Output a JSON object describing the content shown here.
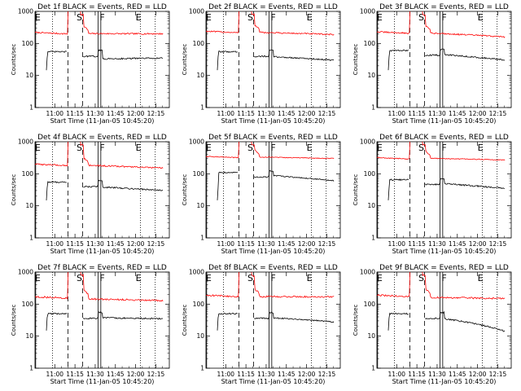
{
  "chart_data": [
    {
      "type": "line",
      "title": "Det 1f BLACK = Events, RED = LLD",
      "xlabel": "Start Time (11-Jan-05 10:45:20)",
      "ylabel": "Counts/sec",
      "yscale": "log",
      "ylim": [
        1,
        1000
      ],
      "x_ticks": [
        "11:00",
        "11:15",
        "11:30",
        "11:45",
        "12:00",
        "12:15"
      ],
      "y_ticks": [
        "1",
        "10",
        "100",
        "1000"
      ],
      "markers": [
        "E",
        "S",
        "F",
        "E"
      ],
      "series": [
        {
          "color": "#ff0000",
          "base": 220,
          "jitter": 0.05,
          "dip": 0.92,
          "end": 200,
          "peak": 1000
        },
        {
          "color": "#000000",
          "base": 55,
          "jitter": 0.05,
          "dip": 0.6,
          "end": 35
        }
      ]
    },
    {
      "type": "line",
      "title": "Det 2f BLACK = Events, RED = LLD",
      "xlabel": "Start Time (11-Jan-05 10:45:20)",
      "ylabel": "Counts/sec",
      "yscale": "log",
      "ylim": [
        1,
        1000
      ],
      "x_ticks": [
        "11:00",
        "11:15",
        "11:30",
        "11:45",
        "12:00",
        "12:15"
      ],
      "y_ticks": [
        "1",
        "10",
        "100",
        "1000"
      ],
      "markers": [
        "E",
        "S",
        "F",
        "E"
      ],
      "series": [
        {
          "color": "#ff0000",
          "base": 240,
          "jitter": 0.05,
          "dip": 0.92,
          "end": 190,
          "peak": 1000
        },
        {
          "color": "#000000",
          "base": 55,
          "jitter": 0.05,
          "dip": 0.7,
          "end": 30
        }
      ]
    },
    {
      "type": "line",
      "title": "Det 3f BLACK = Events, RED = LLD",
      "xlabel": "Start Time (11-Jan-05 10:45:20)",
      "ylabel": "Counts/sec",
      "yscale": "log",
      "ylim": [
        1,
        1000
      ],
      "x_ticks": [
        "11:00",
        "11:15",
        "11:30",
        "11:45",
        "12:00",
        "12:15"
      ],
      "y_ticks": [
        "1",
        "10",
        "100",
        "1000"
      ],
      "markers": [
        "E",
        "S",
        "F",
        "E"
      ],
      "series": [
        {
          "color": "#ff0000",
          "base": 230,
          "jitter": 0.05,
          "dip": 0.92,
          "end": 160,
          "peak": 1000
        },
        {
          "color": "#000000",
          "base": 60,
          "jitter": 0.05,
          "dip": 0.75,
          "end": 30
        }
      ]
    },
    {
      "type": "line",
      "title": "Det 4f BLACK = Events, RED = LLD",
      "xlabel": "Start Time (11-Jan-05 10:45:20)",
      "ylabel": "Counts/sec",
      "yscale": "log",
      "ylim": [
        1,
        1000
      ],
      "x_ticks": [
        "11:00",
        "11:15",
        "11:30",
        "11:45",
        "12:00",
        "12:15"
      ],
      "y_ticks": [
        "1",
        "10",
        "100",
        "1000"
      ],
      "markers": [
        "E",
        "S",
        "F",
        "E"
      ],
      "series": [
        {
          "color": "#ff0000",
          "base": 200,
          "jitter": 0.05,
          "dip": 0.92,
          "end": 150,
          "peak": 1000
        },
        {
          "color": "#000000",
          "base": 55,
          "jitter": 0.05,
          "dip": 0.7,
          "end": 30
        }
      ]
    },
    {
      "type": "line",
      "title": "Det 5f BLACK = Events, RED = LLD",
      "xlabel": "Start Time (11-Jan-05 10:45:20)",
      "ylabel": "Counts/sec",
      "yscale": "log",
      "ylim": [
        1,
        1000
      ],
      "x_ticks": [
        "11:00",
        "11:15",
        "11:30",
        "11:45",
        "12:00",
        "12:15"
      ],
      "y_ticks": [
        "1",
        "10",
        "100",
        "1000"
      ],
      "markers": [
        "E",
        "S",
        "F",
        "E"
      ],
      "series": [
        {
          "color": "#ff0000",
          "base": 350,
          "jitter": 0.03,
          "dip": 0.95,
          "end": 300,
          "peak": 1000
        },
        {
          "color": "#000000",
          "base": 110,
          "jitter": 0.04,
          "dip": 0.8,
          "end": 60
        }
      ]
    },
    {
      "type": "line",
      "title": "Det 6f BLACK = Events, RED = LLD",
      "xlabel": "Start Time (11-Jan-05 10:45:20)",
      "ylabel": "Counts/sec",
      "yscale": "log",
      "ylim": [
        1,
        1000
      ],
      "x_ticks": [
        "11:00",
        "11:15",
        "11:30",
        "11:45",
        "12:00",
        "12:15"
      ],
      "y_ticks": [
        "1",
        "10",
        "100",
        "1000"
      ],
      "markers": [
        "E",
        "S",
        "F",
        "E"
      ],
      "series": [
        {
          "color": "#ff0000",
          "base": 320,
          "jitter": 0.03,
          "dip": 0.95,
          "end": 270,
          "peak": 1000
        },
        {
          "color": "#000000",
          "base": 65,
          "jitter": 0.05,
          "dip": 0.75,
          "end": 35
        }
      ]
    },
    {
      "type": "line",
      "title": "Det 7f BLACK = Events, RED = LLD",
      "xlabel": "Start Time (11-Jan-05 10:45:20)",
      "ylabel": "Counts/sec",
      "yscale": "log",
      "ylim": [
        1,
        1000
      ],
      "x_ticks": [
        "11:00",
        "11:15",
        "11:30",
        "11:45",
        "12:00",
        "12:15"
      ],
      "y_ticks": [
        "1",
        "10",
        "100",
        "1000"
      ],
      "markers": [
        "E",
        "S",
        "F",
        "E"
      ],
      "series": [
        {
          "color": "#ff0000",
          "base": 170,
          "jitter": 0.06,
          "dip": 0.85,
          "end": 130,
          "peak": 1000
        },
        {
          "color": "#000000",
          "base": 50,
          "jitter": 0.05,
          "dip": 0.75,
          "end": 35
        }
      ]
    },
    {
      "type": "line",
      "title": "Det 8f BLACK = Events, RED = LLD",
      "xlabel": "Start Time (11-Jan-05 10:45:20)",
      "ylabel": "Counts/sec",
      "yscale": "log",
      "ylim": [
        1,
        1000
      ],
      "x_ticks": [
        "11:00",
        "11:15",
        "11:30",
        "11:45",
        "12:00",
        "12:15"
      ],
      "y_ticks": [
        "1",
        "10",
        "100",
        "1000"
      ],
      "markers": [
        "E",
        "S",
        "F",
        "E"
      ],
      "series": [
        {
          "color": "#ff0000",
          "base": 190,
          "jitter": 0.06,
          "dip": 0.9,
          "end": 170,
          "peak": 1000
        },
        {
          "color": "#000000",
          "base": 50,
          "jitter": 0.05,
          "dip": 0.75,
          "end": 28
        }
      ]
    },
    {
      "type": "line",
      "title": "Det 9f BLACK = Events, RED = LLD",
      "xlabel": "Start Time (11-Jan-05 10:45:20)",
      "ylabel": "Counts/sec",
      "yscale": "log",
      "ylim": [
        1,
        1000
      ],
      "x_ticks": [
        "11:00",
        "11:15",
        "11:30",
        "11:45",
        "12:00",
        "12:15"
      ],
      "y_ticks": [
        "1",
        "10",
        "100",
        "1000"
      ],
      "markers": [
        "E",
        "S",
        "F",
        "E"
      ],
      "series": [
        {
          "color": "#ff0000",
          "base": 190,
          "jitter": 0.06,
          "dip": 0.85,
          "end": 150,
          "peak": 1000
        },
        {
          "color": "#000000",
          "base": 50,
          "jitter": 0.05,
          "dip": 0.7,
          "end": 14
        }
      ]
    }
  ]
}
